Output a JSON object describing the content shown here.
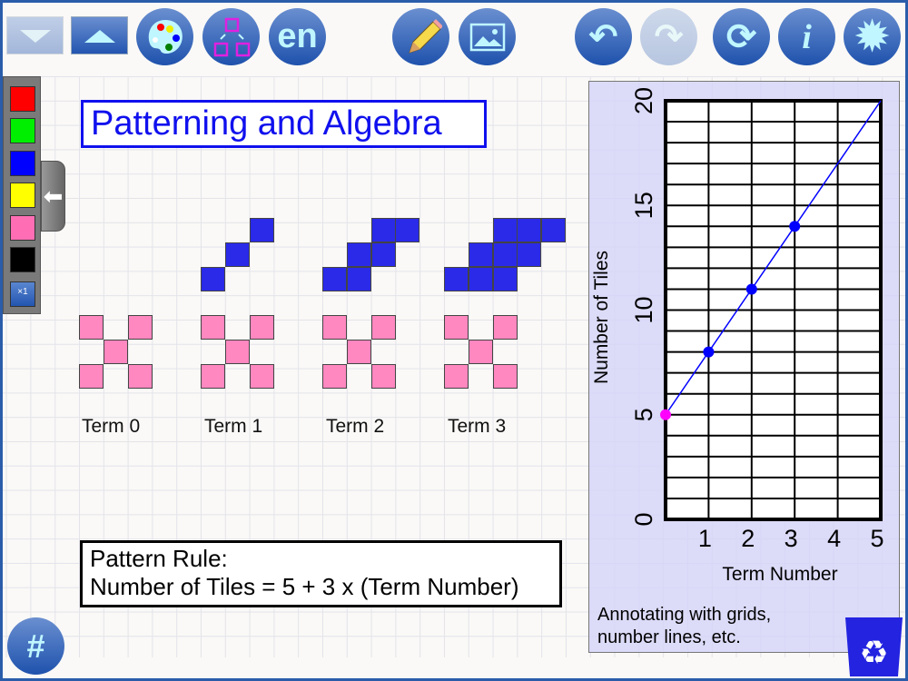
{
  "toolbar": {
    "buttons": [
      {
        "name": "scroll-down-button",
        "icon": "triangle-down-icon",
        "disabled": true
      },
      {
        "name": "scroll-up-button",
        "icon": "triangle-up-icon",
        "disabled": false
      },
      {
        "name": "palette-button",
        "icon": "paint-palette-icon"
      },
      {
        "name": "shapes-button",
        "icon": "shapes-arrange-icon"
      },
      {
        "name": "language-button",
        "label": "en"
      },
      {
        "name": "pencil-button",
        "icon": "pencil-icon"
      },
      {
        "name": "image-button",
        "icon": "image-icon"
      },
      {
        "name": "undo-button",
        "icon": "undo-icon"
      },
      {
        "name": "redo-button",
        "icon": "redo-icon",
        "disabled": true
      },
      {
        "name": "refresh-button",
        "icon": "refresh-icon"
      },
      {
        "name": "info-button",
        "label": "i"
      },
      {
        "name": "settings-button",
        "icon": "gear-icon"
      }
    ]
  },
  "palette": {
    "colors": [
      "#ff0000",
      "#00ee00",
      "#0000ff",
      "#ffff00",
      "#ff6eb4",
      "#000000"
    ],
    "multiplier": "×1"
  },
  "title": "Patterning and Algebra",
  "terms": [
    "Term 0",
    "Term 1",
    "Term 2",
    "Term 3"
  ],
  "rule": {
    "line1": "Pattern Rule:",
    "line2": "Number of Tiles = 5 + 3 x (Term Number)"
  },
  "annotation": "Annotating with grids, number lines, etc.",
  "hash_label": "#",
  "chart_data": {
    "type": "line",
    "xlabel": "Term Number",
    "ylabel": "Number of Tiles",
    "xlim": [
      0,
      5
    ],
    "ylim": [
      0,
      20
    ],
    "xticks": [
      "1",
      "2",
      "3",
      "4",
      "5"
    ],
    "yticks": [
      "0",
      "5",
      "10",
      "15",
      "20"
    ],
    "grid": true,
    "points": [
      {
        "x": 0,
        "y": 5,
        "color": "#ff00ff"
      },
      {
        "x": 1,
        "y": 8,
        "color": "#0000ff"
      },
      {
        "x": 2,
        "y": 11,
        "color": "#0000ff"
      },
      {
        "x": 3,
        "y": 14,
        "color": "#0000ff"
      }
    ],
    "line": {
      "from": [
        0,
        5
      ],
      "to": [
        5,
        20
      ],
      "color": "#0000ff"
    }
  }
}
